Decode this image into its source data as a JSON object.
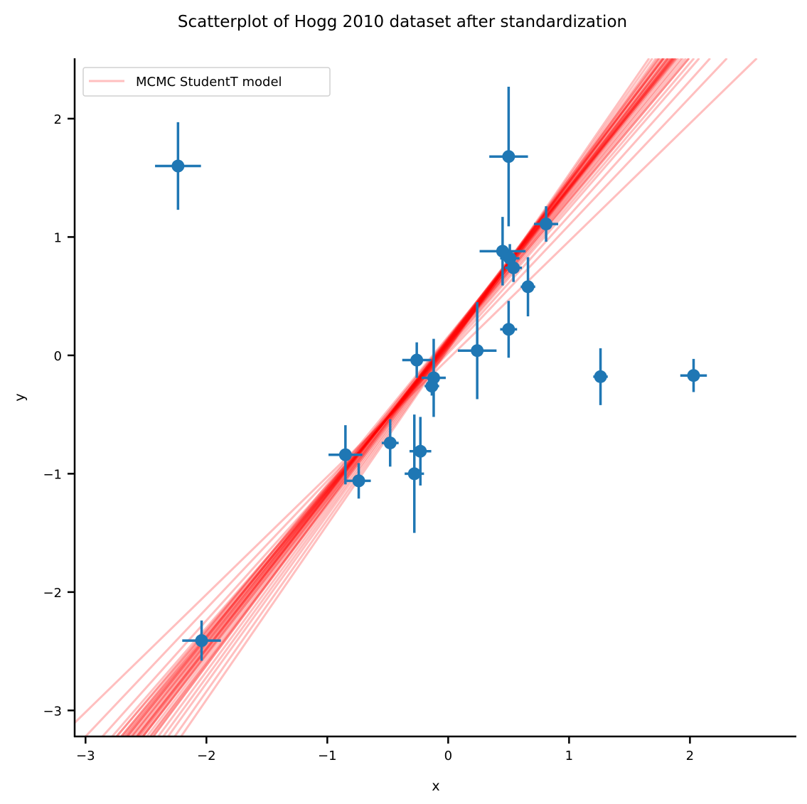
{
  "chart_data": {
    "type": "scatter",
    "title": "Scatterplot of Hogg 2010 dataset after standardization",
    "xlabel": "x",
    "ylabel": "y",
    "xlim": [
      -3.09,
      2.88
    ],
    "ylim": [
      -3.22,
      2.51
    ],
    "xticks": [
      -3,
      -2,
      -1,
      0,
      1,
      2
    ],
    "yticks": [
      -3,
      -2,
      -1,
      0,
      1,
      2
    ],
    "xtick_labels": [
      "−3",
      "−2",
      "−1",
      "0",
      "1",
      "2"
    ],
    "ytick_labels": [
      "−3",
      "−2",
      "−1",
      "0",
      "1",
      "2"
    ],
    "grid": false,
    "legend": {
      "placement": "top-left",
      "entries": [
        "MCMC StudentT model"
      ]
    },
    "colors": {
      "points": "#1f77b4",
      "lines": "#ff0000"
    },
    "points": [
      {
        "x": -2.235,
        "y": 1.6,
        "xerr": 0.19,
        "yerr": 0.37
      },
      {
        "x": 0.5,
        "y": 1.68,
        "xerr": 0.16,
        "yerr": 0.59
      },
      {
        "x": 0.81,
        "y": 1.11,
        "xerr": 0.1,
        "yerr": 0.15
      },
      {
        "x": 0.45,
        "y": 0.88,
        "xerr": 0.19,
        "yerr": 0.29
      },
      {
        "x": 0.51,
        "y": 0.82,
        "xerr": 0.08,
        "yerr": 0.12
      },
      {
        "x": 0.54,
        "y": 0.74,
        "xerr": 0.07,
        "yerr": 0.12
      },
      {
        "x": 0.66,
        "y": 0.58,
        "xerr": 0.06,
        "yerr": 0.25
      },
      {
        "x": 0.5,
        "y": 0.22,
        "xerr": 0.07,
        "yerr": 0.24
      },
      {
        "x": 0.24,
        "y": 0.04,
        "xerr": 0.16,
        "yerr": 0.41
      },
      {
        "x": -0.26,
        "y": -0.04,
        "xerr": 0.12,
        "yerr": 0.15
      },
      {
        "x": -0.12,
        "y": -0.19,
        "xerr": 0.1,
        "yerr": 0.33
      },
      {
        "x": -0.135,
        "y": -0.26,
        "xerr": 0.06,
        "yerr": 0.08
      },
      {
        "x": 1.26,
        "y": -0.18,
        "xerr": 0.06,
        "yerr": 0.24
      },
      {
        "x": 2.03,
        "y": -0.17,
        "xerr": 0.11,
        "yerr": 0.14
      },
      {
        "x": -0.85,
        "y": -0.84,
        "xerr": 0.14,
        "yerr": 0.25
      },
      {
        "x": -0.48,
        "y": -0.74,
        "xerr": 0.07,
        "yerr": 0.2
      },
      {
        "x": -0.23,
        "y": -0.81,
        "xerr": 0.09,
        "yerr": 0.29
      },
      {
        "x": -0.28,
        "y": -1.0,
        "xerr": 0.08,
        "yerr": 0.5
      },
      {
        "x": -0.74,
        "y": -1.06,
        "xerr": 0.1,
        "yerr": 0.15
      },
      {
        "x": -2.04,
        "y": -2.41,
        "xerr": 0.16,
        "yerr": 0.17
      }
    ],
    "posterior_lines": [
      {
        "intercept": -0.03,
        "slope": 0.995
      },
      {
        "intercept": 0.02,
        "slope": 1.08
      },
      {
        "intercept": 0.04,
        "slope": 1.14
      },
      {
        "intercept": 0.06,
        "slope": 1.18
      },
      {
        "intercept": 0.07,
        "slope": 1.2
      },
      {
        "intercept": 0.08,
        "slope": 1.22
      },
      {
        "intercept": 0.09,
        "slope": 1.23
      },
      {
        "intercept": 0.1,
        "slope": 1.24
      },
      {
        "intercept": 0.1,
        "slope": 1.25
      },
      {
        "intercept": 0.11,
        "slope": 1.26
      },
      {
        "intercept": 0.11,
        "slope": 1.27
      },
      {
        "intercept": 0.12,
        "slope": 1.28
      },
      {
        "intercept": 0.12,
        "slope": 1.29
      },
      {
        "intercept": 0.13,
        "slope": 1.3
      },
      {
        "intercept": 0.13,
        "slope": 1.31
      },
      {
        "intercept": 0.14,
        "slope": 1.32
      },
      {
        "intercept": 0.14,
        "slope": 1.33
      },
      {
        "intercept": 0.12,
        "slope": 1.34
      },
      {
        "intercept": 0.11,
        "slope": 1.35
      },
      {
        "intercept": 0.1,
        "slope": 1.36
      },
      {
        "intercept": 0.09,
        "slope": 1.38
      },
      {
        "intercept": 0.08,
        "slope": 1.4
      },
      {
        "intercept": 0.07,
        "slope": 1.42
      },
      {
        "intercept": 0.06,
        "slope": 1.45
      },
      {
        "intercept": 0.05,
        "slope": 1.48
      },
      {
        "intercept": 0.15,
        "slope": 1.27
      },
      {
        "intercept": 0.16,
        "slope": 1.25
      },
      {
        "intercept": 0.12,
        "slope": 1.3
      },
      {
        "intercept": 0.1,
        "slope": 1.29
      },
      {
        "intercept": 0.13,
        "slope": 1.28
      },
      {
        "intercept": 0.11,
        "slope": 1.32
      },
      {
        "intercept": 0.09,
        "slope": 1.31
      },
      {
        "intercept": 0.14,
        "slope": 1.26
      },
      {
        "intercept": 0.08,
        "slope": 1.34
      },
      {
        "intercept": 0.12,
        "slope": 1.37
      },
      {
        "intercept": 0.1,
        "slope": 1.21
      }
    ]
  }
}
